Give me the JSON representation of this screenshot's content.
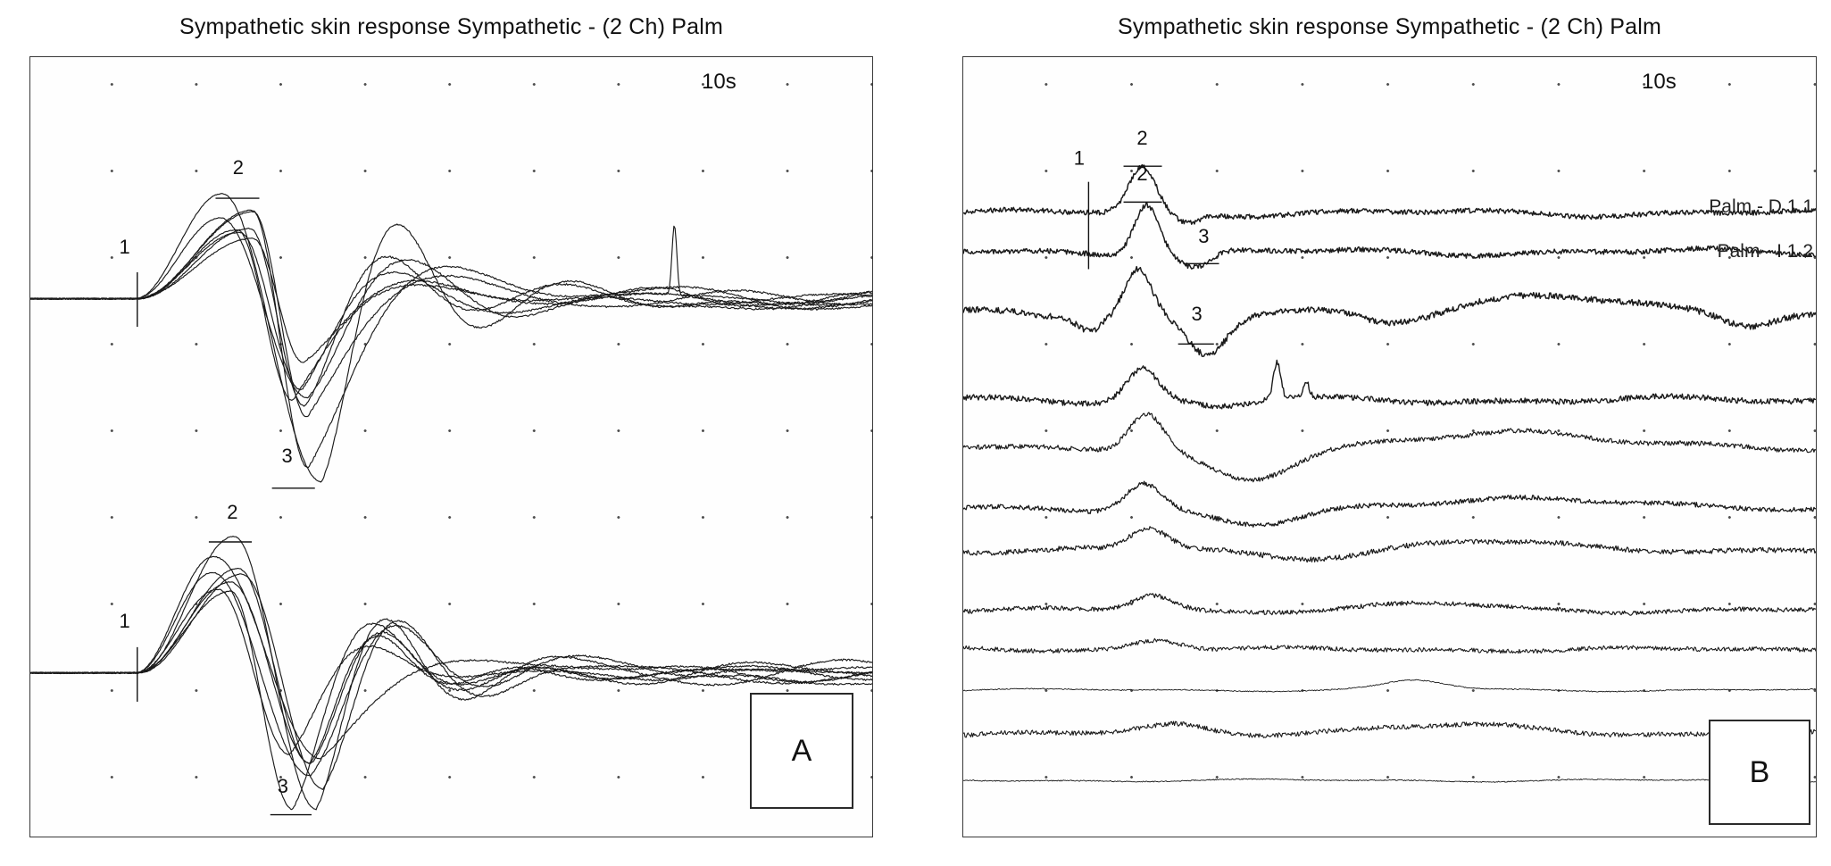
{
  "panels": [
    {
      "letter": "A",
      "title": "Sympathetic skin response Sympathetic - (2 Ch) Palm",
      "timebase": "10s"
    },
    {
      "letter": "B",
      "title": "Sympathetic skin response Sympathetic - (2 Ch) Palm",
      "timebase": "10s",
      "trace_labels": [
        "Palm - D 1.1",
        "Palm - I 1.2"
      ]
    }
  ],
  "chart_data": [
    {
      "type": "line",
      "panel": "A",
      "title": "Sympathetic skin response Sympathetic - (2 Ch) Palm",
      "x_range_label": "10s",
      "description": "Two channels of ~8 superimposed sympathetic skin response sweeps; latency marker 1, peak marker 2, trough marker 3",
      "seed": 7,
      "spike": {
        "x": 0.765,
        "a": 0.09,
        "w": 0.004
      },
      "groups": [
        {
          "name": "channel-1-top",
          "n_traces": 8,
          "baseline": 0.31,
          "peak": 0.175,
          "trough": 0.545,
          "onset_x": 0.127,
          "peak_x": 0.245,
          "trough_x": 0.322
        },
        {
          "name": "channel-2-bottom",
          "n_traces": 8,
          "baseline": 0.79,
          "peak": 0.615,
          "trough": 0.965,
          "onset_x": 0.127,
          "peak_x": 0.235,
          "trough_x": 0.33
        }
      ],
      "markers": [
        {
          "label": "1",
          "lx": 0.112,
          "ly": 0.252,
          "tick": "v",
          "tx": 0.127,
          "y1": 0.276,
          "y2": 0.346
        },
        {
          "label": "2",
          "lx": 0.247,
          "ly": 0.15,
          "tick": "h",
          "x1": 0.22,
          "x2": 0.272,
          "ty": 0.181
        },
        {
          "label": "3",
          "lx": 0.305,
          "ly": 0.52,
          "tick": "h",
          "x1": 0.287,
          "x2": 0.338,
          "ty": 0.553
        },
        {
          "label": "1",
          "lx": 0.112,
          "ly": 0.732,
          "tick": "v",
          "tx": 0.127,
          "y1": 0.757,
          "y2": 0.827
        },
        {
          "label": "2",
          "lx": 0.24,
          "ly": 0.592,
          "tick": "h",
          "x1": 0.212,
          "x2": 0.263,
          "ty": 0.622
        },
        {
          "label": "3",
          "lx": 0.3,
          "ly": 0.944,
          "tick": "h",
          "x1": 0.285,
          "x2": 0.334,
          "ty": 0.972
        }
      ]
    },
    {
      "type": "line",
      "panel": "B",
      "title": "Sympathetic skin response Sympathetic - (2 Ch) Palm",
      "x_range_label": "10s",
      "description": "Stacked consecutive SSR sweeps, amplitude habituating from top (Palm - D 1.1, Palm - I 1.2) to flat bottom traces",
      "seed": 11,
      "traces": [
        {
          "label": "Palm - D 1.1",
          "y": 0.2,
          "thick": 1.5,
          "noise": 0.0032,
          "wander": 0.005,
          "bumps": [
            {
              "x": 0.21,
              "a": 0.058,
              "w": 0.022
            }
          ],
          "dips": [
            {
              "x": 0.262,
              "a": 0.012,
              "w": 0.02
            }
          ]
        },
        {
          "label": "Palm - I 1.2",
          "y": 0.25,
          "thick": 1.5,
          "noise": 0.0032,
          "wander": 0.005,
          "bumps": [
            {
              "x": 0.215,
              "a": 0.065,
              "w": 0.02
            }
          ],
          "dips": [
            {
              "x": 0.272,
              "a": 0.02,
              "w": 0.024
            }
          ]
        },
        {
          "y": 0.33,
          "thick": 1.5,
          "noise": 0.004,
          "wander": 0.007,
          "bumps": [
            {
              "x": 0.205,
              "a": 0.06,
              "w": 0.022
            },
            {
              "x": 0.68,
              "a": 0.028,
              "w": 0.11
            }
          ],
          "dips": [
            {
              "x": 0.148,
              "a": 0.016,
              "w": 0.018
            },
            {
              "x": 0.285,
              "a": 0.05,
              "w": 0.032
            },
            {
              "x": 0.5,
              "a": 0.012,
              "w": 0.05
            },
            {
              "x": 0.92,
              "a": 0.015,
              "w": 0.04
            }
          ]
        },
        {
          "y": 0.44,
          "thick": 1.4,
          "noise": 0.0036,
          "wander": 0.005,
          "bumps": [
            {
              "x": 0.21,
              "a": 0.042,
              "w": 0.026
            },
            {
              "x": 0.368,
              "a": 0.048,
              "w": 0.006
            },
            {
              "x": 0.402,
              "a": 0.02,
              "w": 0.005
            }
          ],
          "dips": [
            {
              "x": 0.3,
              "a": 0.008,
              "w": 0.04
            }
          ]
        },
        {
          "y": 0.5,
          "thick": 1.2,
          "noise": 0.003,
          "wander": 0.005,
          "bumps": [
            {
              "x": 0.215,
              "a": 0.048,
              "w": 0.028
            },
            {
              "x": 0.63,
              "a": 0.022,
              "w": 0.12
            }
          ],
          "dips": [
            {
              "x": 0.335,
              "a": 0.045,
              "w": 0.07
            }
          ]
        },
        {
          "y": 0.58,
          "thick": 1.3,
          "noise": 0.003,
          "wander": 0.004,
          "bumps": [
            {
              "x": 0.212,
              "a": 0.035,
              "w": 0.03
            },
            {
              "x": 0.66,
              "a": 0.016,
              "w": 0.14
            }
          ],
          "dips": [
            {
              "x": 0.35,
              "a": 0.02,
              "w": 0.07
            }
          ]
        },
        {
          "y": 0.632,
          "thick": 1.2,
          "noise": 0.0033,
          "wander": 0.004,
          "bumps": [
            {
              "x": 0.218,
              "a": 0.026,
              "w": 0.032
            },
            {
              "x": 0.6,
              "a": 0.01,
              "w": 0.12
            }
          ],
          "dips": [
            {
              "x": 0.4,
              "a": 0.01,
              "w": 0.09
            }
          ]
        },
        {
          "y": 0.71,
          "thick": 1.2,
          "noise": 0.0028,
          "wander": 0.0035,
          "bumps": [
            {
              "x": 0.222,
              "a": 0.02,
              "w": 0.034
            },
            {
              "x": 0.56,
              "a": 0.008,
              "w": 0.1
            }
          ],
          "dips": []
        },
        {
          "y": 0.76,
          "thick": 1.1,
          "noise": 0.0028,
          "wander": 0.003,
          "bumps": [
            {
              "x": 0.228,
              "a": 0.013,
              "w": 0.04
            }
          ],
          "dips": []
        },
        {
          "y": 0.812,
          "thick": 0.9,
          "noise": 0.0007,
          "wander": 0.002,
          "bumps": [
            {
              "x": 0.53,
              "a": 0.012,
              "w": 0.05
            }
          ],
          "dips": []
        },
        {
          "y": 0.868,
          "thick": 1.1,
          "noise": 0.003,
          "wander": 0.004,
          "bumps": [
            {
              "x": 0.25,
              "a": 0.01,
              "w": 0.05
            },
            {
              "x": 0.56,
              "a": 0.01,
              "w": 0.14
            }
          ],
          "dips": []
        },
        {
          "y": 0.928,
          "thick": 0.9,
          "noise": 0.0007,
          "wander": 0.002,
          "bumps": [],
          "dips": []
        }
      ],
      "markers": [
        {
          "label": "1",
          "lx": 0.136,
          "ly": 0.138,
          "tick": "v",
          "tx": 0.147,
          "y1": 0.16,
          "y2": 0.272
        },
        {
          "label": "2",
          "lx": 0.21,
          "ly": 0.112,
          "tick": "h",
          "x1": 0.188,
          "x2": 0.233,
          "ty": 0.14
        },
        {
          "label": "2",
          "lx": 0.21,
          "ly": 0.158,
          "tick": "h",
          "x1": 0.188,
          "x2": 0.233,
          "ty": 0.186
        },
        {
          "label": "3",
          "lx": 0.282,
          "ly": 0.238,
          "tick": "h",
          "x1": 0.258,
          "x2": 0.3,
          "ty": 0.265
        },
        {
          "label": "3",
          "lx": 0.274,
          "ly": 0.338,
          "tick": "h",
          "x1": 0.252,
          "x2": 0.294,
          "ty": 0.368
        }
      ]
    }
  ]
}
